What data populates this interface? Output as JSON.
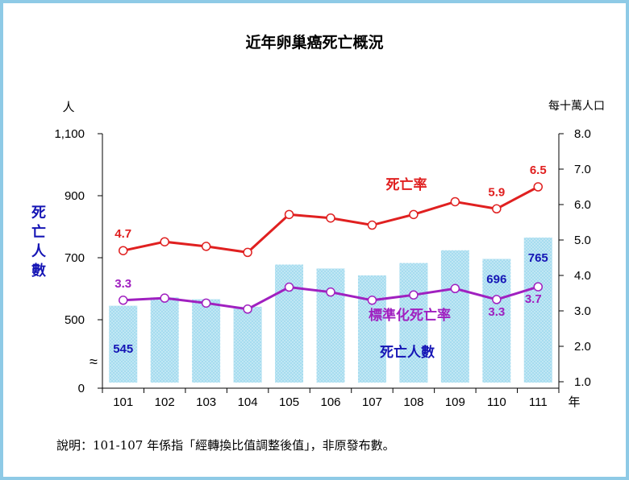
{
  "chart_data": {
    "type": "bar-line-combo",
    "title": "近年卵巢癌死亡概況",
    "note": "說明：101-107 年係指「經轉換比值調整後值」，非原發布數。",
    "categories": [
      "101",
      "102",
      "103",
      "104",
      "105",
      "106",
      "107",
      "108",
      "109",
      "110",
      "111"
    ],
    "x_unit": "年",
    "left_axis": {
      "unit": "人",
      "label": "死亡人數",
      "ticks": [
        "1,100",
        "900",
        "700",
        "500",
        "0"
      ],
      "tick_values": [
        1100,
        900,
        700,
        500,
        0
      ],
      "axis_break": "≈",
      "ylim": [
        0,
        1100
      ]
    },
    "right_axis": {
      "unit": "每十萬人口",
      "ticks": [
        "8.0",
        "7.0",
        "6.0",
        "5.0",
        "4.0",
        "3.0",
        "2.0",
        "1.0"
      ],
      "ylim": [
        1.0,
        8.0
      ]
    },
    "bars": {
      "name": "死亡人數",
      "color": "#a6dcef",
      "values": [
        545,
        572,
        566,
        542,
        678,
        665,
        643,
        683,
        724,
        696,
        765
      ],
      "labels": [
        {
          "index": 0,
          "text": "545"
        },
        {
          "index": 9,
          "text": "696"
        },
        {
          "index": 10,
          "text": "765"
        }
      ]
    },
    "series": [
      {
        "name": "死亡率",
        "color": "#e02020",
        "values": [
          4.7,
          4.95,
          4.82,
          4.65,
          5.72,
          5.62,
          5.42,
          5.72,
          6.08,
          5.88,
          6.5
        ],
        "labels": [
          {
            "index": 0,
            "text": "4.7"
          },
          {
            "index": 9,
            "text": "5.9"
          },
          {
            "index": 10,
            "text": "6.5"
          }
        ]
      },
      {
        "name": "標準化死亡率",
        "color": "#a020c0",
        "values": [
          3.3,
          3.36,
          3.22,
          3.05,
          3.67,
          3.53,
          3.3,
          3.45,
          3.63,
          3.32,
          3.68
        ],
        "labels": [
          {
            "index": 0,
            "text": "3.3"
          },
          {
            "index": 9,
            "text": "3.3"
          },
          {
            "index": 10,
            "text": "3.7"
          }
        ]
      }
    ]
  }
}
